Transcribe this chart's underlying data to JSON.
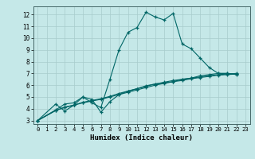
{
  "xlabel": "Humidex (Indice chaleur)",
  "xlim": [
    -0.5,
    23.5
  ],
  "ylim": [
    2.7,
    12.7
  ],
  "xticks": [
    0,
    1,
    2,
    3,
    4,
    5,
    6,
    7,
    8,
    9,
    10,
    11,
    12,
    13,
    14,
    15,
    16,
    17,
    18,
    19,
    20,
    21,
    22,
    23
  ],
  "yticks": [
    3,
    4,
    5,
    6,
    7,
    8,
    9,
    10,
    11,
    12
  ],
  "bg_color": "#c5e8e8",
  "line_color": "#006666",
  "grid_color": "#a8cccc",
  "lines": [
    {
      "x": [
        0,
        2,
        3,
        4,
        5,
        6,
        7,
        8,
        9,
        10,
        11,
        12,
        13,
        14,
        15,
        16,
        17,
        18,
        19,
        20,
        21,
        22
      ],
      "y": [
        3.0,
        4.4,
        3.8,
        4.3,
        5.0,
        4.5,
        4.1,
        6.5,
        9.0,
        10.5,
        10.9,
        12.2,
        11.8,
        11.55,
        12.1,
        9.5,
        9.1,
        8.3,
        7.5,
        7.0,
        7.0,
        6.9
      ]
    },
    {
      "x": [
        0,
        2,
        3,
        4,
        5,
        6,
        7,
        8,
        9,
        10,
        11,
        12,
        13,
        14,
        15,
        16,
        17,
        18,
        19,
        20,
        21,
        22
      ],
      "y": [
        3.0,
        3.9,
        4.4,
        4.5,
        5.0,
        4.8,
        3.7,
        4.6,
        5.2,
        5.5,
        5.7,
        5.9,
        6.1,
        6.2,
        6.3,
        6.5,
        6.6,
        6.8,
        6.9,
        7.0,
        7.0,
        6.95
      ]
    },
    {
      "x": [
        0,
        2,
        3,
        4,
        5,
        6,
        7,
        8,
        9,
        10,
        11,
        12,
        13,
        14,
        15,
        16,
        17,
        18,
        19,
        20,
        21,
        22
      ],
      "y": [
        3.0,
        3.85,
        4.1,
        4.3,
        4.5,
        4.65,
        4.8,
        5.0,
        5.2,
        5.4,
        5.6,
        5.8,
        6.0,
        6.15,
        6.3,
        6.4,
        6.55,
        6.65,
        6.75,
        6.85,
        6.9,
        6.95
      ]
    },
    {
      "x": [
        0,
        2,
        3,
        4,
        5,
        6,
        7,
        8,
        9,
        10,
        11,
        12,
        13,
        14,
        15,
        16,
        17,
        18,
        19,
        20,
        21,
        22
      ],
      "y": [
        3.0,
        3.85,
        4.15,
        4.3,
        4.55,
        4.7,
        4.85,
        5.05,
        5.3,
        5.5,
        5.7,
        5.95,
        6.1,
        6.25,
        6.4,
        6.5,
        6.6,
        6.7,
        6.8,
        6.9,
        6.95,
        7.0
      ]
    }
  ]
}
